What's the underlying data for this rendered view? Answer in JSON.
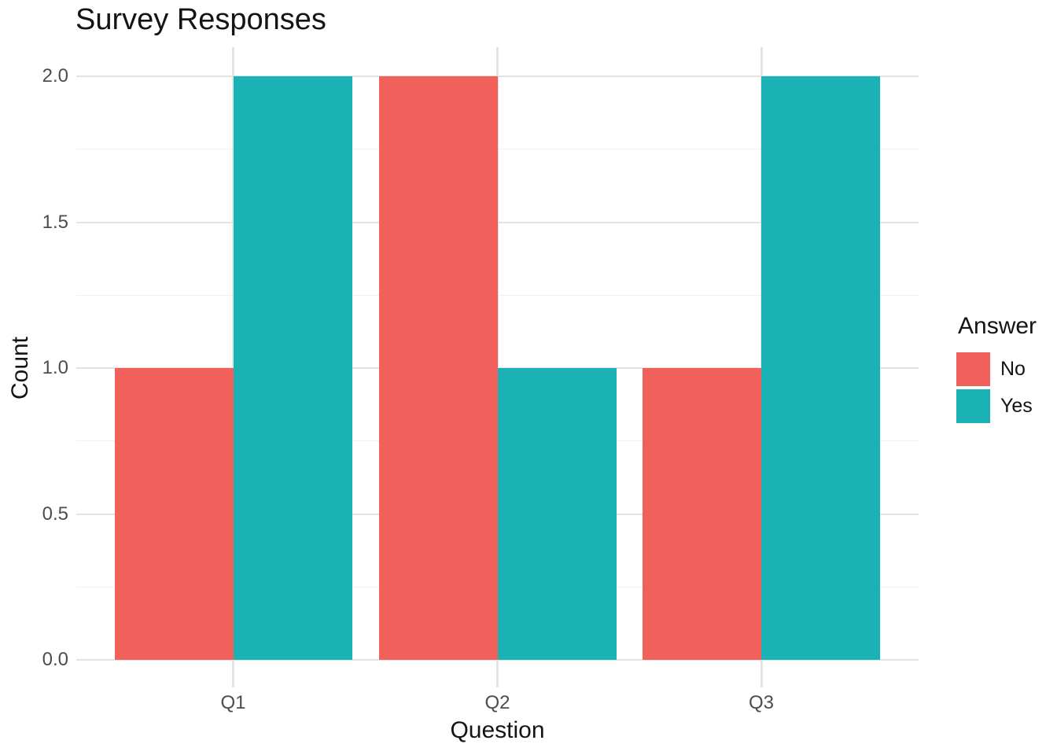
{
  "title": "Survey Responses",
  "chart_data": {
    "type": "bar",
    "title": "Survey Responses",
    "xlabel": "Question",
    "ylabel": "Count",
    "categories": [
      "Q1",
      "Q2",
      "Q3"
    ],
    "series": [
      {
        "name": "No",
        "color": "#F2605C",
        "values": [
          1,
          2,
          1
        ]
      },
      {
        "name": "Yes",
        "color": "#1AB2B4",
        "values": [
          2,
          1,
          2
        ]
      }
    ],
    "ylim": [
      0,
      2
    ],
    "yticks": [
      0.0,
      0.5,
      1.0,
      1.5,
      2.0
    ],
    "ytick_labels": [
      "0.0",
      "0.5",
      "1.0",
      "1.5",
      "2.0"
    ],
    "minor_yticks": [
      0.25,
      0.75,
      1.25,
      1.75
    ],
    "grid": true,
    "grouping": "dodged",
    "legend_position": "right",
    "theme": "minimal-white"
  },
  "legend": {
    "title": "Answer",
    "items": [
      {
        "label": "No",
        "color": "#F2605C"
      },
      {
        "label": "Yes",
        "color": "#1AB2B4"
      }
    ]
  },
  "colors": {
    "background": "#ffffff",
    "grid_major": "#e3e3e3",
    "grid_minor": "#efefef",
    "tick_text": "#4d4d4d",
    "title_text": "#141414"
  }
}
